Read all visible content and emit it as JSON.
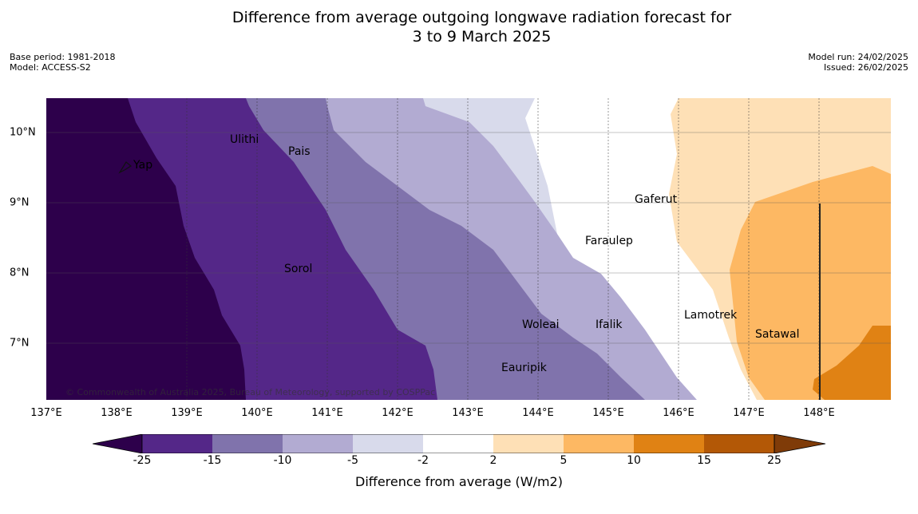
{
  "title": {
    "line1": "Difference from average outgoing longwave radiation forecast for",
    "line2": "3 to 9 March 2025"
  },
  "meta_left": {
    "base_period": "Base period: 1981-2018",
    "model": "Model: ACCESS-S2"
  },
  "meta_right": {
    "model_run": "Model run: 24/02/2025",
    "issued": "Issued: 26/02/2025"
  },
  "map": {
    "lon_range": [
      137,
      149
    ],
    "lat_range": [
      6.2,
      10.5
    ],
    "x_ticks": [
      "137°E",
      "138°E",
      "139°E",
      "140°E",
      "141°E",
      "142°E",
      "143°E",
      "144°E",
      "145°E",
      "146°E",
      "147°E",
      "148°E"
    ],
    "y_ticks": [
      "10°N",
      "9°N",
      "8°N",
      "7°N"
    ],
    "places": [
      {
        "name": "Ulithi",
        "lon": 139.75,
        "lat": 9.85
      },
      {
        "name": "Pais",
        "lon": 140.45,
        "lat": 9.65
      },
      {
        "name": "Yap",
        "lon": 138.2,
        "lat": 9.48
      },
      {
        "name": "Gaferut",
        "lon": 145.35,
        "lat": 9.0
      },
      {
        "name": "Faraulep",
        "lon": 144.7,
        "lat": 8.42
      },
      {
        "name": "Sorol",
        "lon": 140.4,
        "lat": 8.02
      },
      {
        "name": "Lamotrek",
        "lon": 146.1,
        "lat": 7.35
      },
      {
        "name": "Woleai",
        "lon": 143.8,
        "lat": 7.22
      },
      {
        "name": "Ifalik",
        "lon": 144.6,
        "lat": 7.22
      },
      {
        "name": "Satawal",
        "lon": 147.1,
        "lat": 7.1
      },
      {
        "name": "Eauripik",
        "lon": 143.45,
        "lat": 6.6
      }
    ],
    "copyright": "© Commonwealth of Australia 2025, Bureau of Meteorology, supported by COSPPac"
  },
  "colorbar": {
    "label": "Difference from average (W/m2)",
    "ticks": [
      "-25",
      "-15",
      "-10",
      "-5",
      "-2",
      "2",
      "5",
      "10",
      "15",
      "25"
    ],
    "colors": {
      "below_-25": "#2d004b",
      "-25_-15": "#542788",
      "-15_-10": "#8073ac",
      "-10_-5": "#b2abd2",
      "-5_-2": "#d8daeb",
      "-2_2": "#ffffff",
      "2_5": "#fee0b6",
      "5_10": "#fdb863",
      "10_15": "#e08214",
      "15_25": "#b35806",
      "above_25": "#7f3b08"
    }
  }
}
